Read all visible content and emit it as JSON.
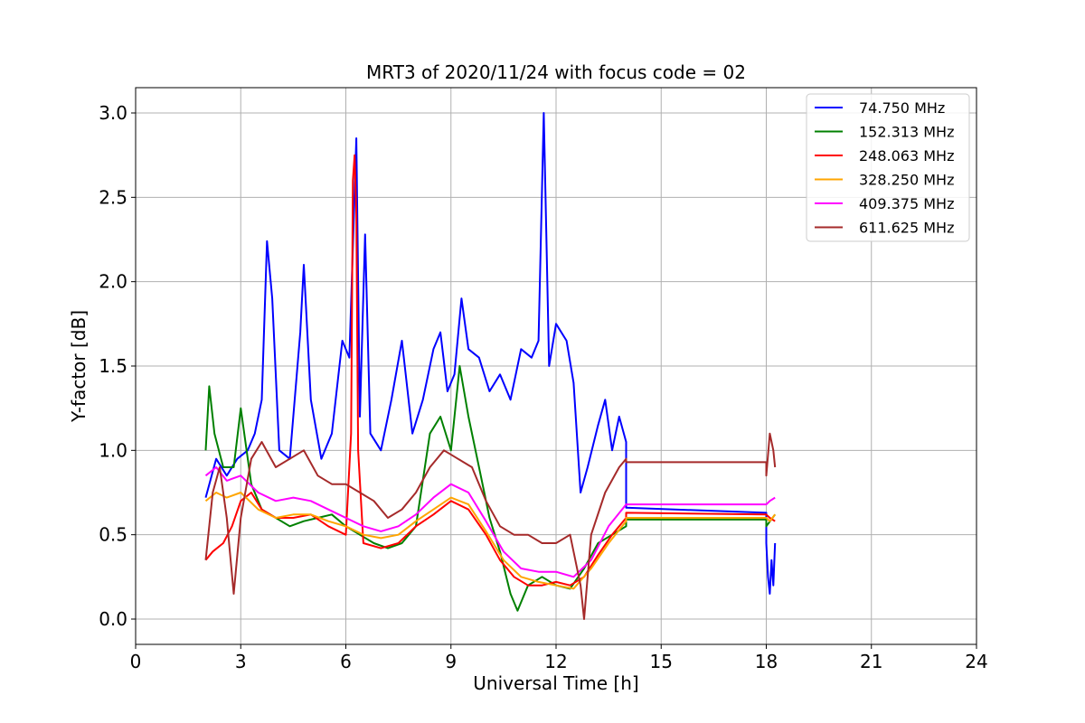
{
  "chart_data": {
    "type": "line",
    "title": "MRT3 of 2020/11/24 with focus code = 02",
    "xlabel": "Universal Time [h]",
    "ylabel": "Y-factor [dB]",
    "xlim": [
      0,
      24
    ],
    "ylim": [
      -0.15,
      3.15
    ],
    "xticks": [
      0,
      3,
      6,
      9,
      12,
      15,
      18,
      21,
      24
    ],
    "xtick_labels": [
      "0",
      "3",
      "6",
      "9",
      "12",
      "15",
      "18",
      "21",
      "24"
    ],
    "yticks": [
      0.0,
      0.5,
      1.0,
      1.5,
      2.0,
      2.5,
      3.0
    ],
    "ytick_labels": [
      "0.0",
      "0.5",
      "1.0",
      "1.5",
      "2.0",
      "2.5",
      "3.0"
    ],
    "grid": true,
    "legend_position": "top-right",
    "series": [
      {
        "name": " 74.750 MHz",
        "color": "#0000ff",
        "points": [
          [
            2.0,
            0.72
          ],
          [
            2.3,
            0.95
          ],
          [
            2.6,
            0.85
          ],
          [
            2.9,
            0.95
          ],
          [
            3.2,
            1.0
          ],
          [
            3.4,
            1.1
          ],
          [
            3.6,
            1.3
          ],
          [
            3.75,
            2.24
          ],
          [
            3.9,
            1.9
          ],
          [
            4.1,
            1.0
          ],
          [
            4.4,
            0.95
          ],
          [
            4.7,
            1.7
          ],
          [
            4.8,
            2.1
          ],
          [
            5.0,
            1.3
          ],
          [
            5.3,
            0.95
          ],
          [
            5.6,
            1.1
          ],
          [
            5.9,
            1.65
          ],
          [
            6.1,
            1.55
          ],
          [
            6.3,
            2.85
          ],
          [
            6.4,
            1.2
          ],
          [
            6.55,
            2.28
          ],
          [
            6.7,
            1.1
          ],
          [
            7.0,
            1.0
          ],
          [
            7.3,
            1.3
          ],
          [
            7.6,
            1.65
          ],
          [
            7.9,
            1.1
          ],
          [
            8.2,
            1.3
          ],
          [
            8.5,
            1.6
          ],
          [
            8.7,
            1.7
          ],
          [
            8.9,
            1.35
          ],
          [
            9.1,
            1.45
          ],
          [
            9.3,
            1.9
          ],
          [
            9.5,
            1.6
          ],
          [
            9.8,
            1.55
          ],
          [
            10.1,
            1.35
          ],
          [
            10.4,
            1.45
          ],
          [
            10.7,
            1.3
          ],
          [
            11.0,
            1.6
          ],
          [
            11.3,
            1.55
          ],
          [
            11.5,
            1.65
          ],
          [
            11.65,
            3.0
          ],
          [
            11.8,
            1.5
          ],
          [
            12.0,
            1.75
          ],
          [
            12.3,
            1.65
          ],
          [
            12.5,
            1.4
          ],
          [
            12.7,
            0.75
          ],
          [
            12.9,
            0.9
          ],
          [
            13.2,
            1.15
          ],
          [
            13.4,
            1.3
          ],
          [
            13.6,
            1.0
          ],
          [
            13.8,
            1.2
          ],
          [
            14.0,
            1.05
          ],
          [
            14.0,
            0.66
          ],
          [
            18.0,
            0.63
          ],
          [
            18.0,
            0.45
          ],
          [
            18.05,
            0.25
          ],
          [
            18.1,
            0.15
          ],
          [
            18.15,
            0.35
          ],
          [
            18.2,
            0.2
          ],
          [
            18.25,
            0.45
          ]
        ]
      },
      {
        "name": "152.313 MHz",
        "color": "#008000",
        "points": [
          [
            2.0,
            1.0
          ],
          [
            2.1,
            1.38
          ],
          [
            2.25,
            1.1
          ],
          [
            2.5,
            0.9
          ],
          [
            2.8,
            0.9
          ],
          [
            3.0,
            1.25
          ],
          [
            3.3,
            0.8
          ],
          [
            3.6,
            0.65
          ],
          [
            4.0,
            0.6
          ],
          [
            4.4,
            0.55
          ],
          [
            4.8,
            0.58
          ],
          [
            5.2,
            0.6
          ],
          [
            5.6,
            0.62
          ],
          [
            6.0,
            0.55
          ],
          [
            6.4,
            0.5
          ],
          [
            6.8,
            0.45
          ],
          [
            7.2,
            0.42
          ],
          [
            7.6,
            0.45
          ],
          [
            8.0,
            0.55
          ],
          [
            8.4,
            1.1
          ],
          [
            8.7,
            1.2
          ],
          [
            9.0,
            1.0
          ],
          [
            9.25,
            1.5
          ],
          [
            9.5,
            1.2
          ],
          [
            9.8,
            0.9
          ],
          [
            10.1,
            0.6
          ],
          [
            10.4,
            0.4
          ],
          [
            10.7,
            0.15
          ],
          [
            10.9,
            0.05
          ],
          [
            11.2,
            0.2
          ],
          [
            11.6,
            0.25
          ],
          [
            12.0,
            0.2
          ],
          [
            12.4,
            0.18
          ],
          [
            12.8,
            0.3
          ],
          [
            13.2,
            0.45
          ],
          [
            13.6,
            0.5
          ],
          [
            14.0,
            0.55
          ],
          [
            14.0,
            0.59
          ],
          [
            18.0,
            0.59
          ],
          [
            18.0,
            0.55
          ],
          [
            18.25,
            0.62
          ]
        ]
      },
      {
        "name": "248.063 MHz",
        "color": "#ff0000",
        "points": [
          [
            2.0,
            0.35
          ],
          [
            2.2,
            0.4
          ],
          [
            2.5,
            0.45
          ],
          [
            2.75,
            0.55
          ],
          [
            3.0,
            0.7
          ],
          [
            3.3,
            0.75
          ],
          [
            3.6,
            0.65
          ],
          [
            4.0,
            0.6
          ],
          [
            4.5,
            0.6
          ],
          [
            5.0,
            0.62
          ],
          [
            5.5,
            0.55
          ],
          [
            6.0,
            0.5
          ],
          [
            6.15,
            1.1
          ],
          [
            6.2,
            2.6
          ],
          [
            6.25,
            2.75
          ],
          [
            6.3,
            2.4
          ],
          [
            6.35,
            1.0
          ],
          [
            6.5,
            0.45
          ],
          [
            7.0,
            0.42
          ],
          [
            7.5,
            0.45
          ],
          [
            8.0,
            0.55
          ],
          [
            8.5,
            0.62
          ],
          [
            9.0,
            0.7
          ],
          [
            9.5,
            0.65
          ],
          [
            10.0,
            0.5
          ],
          [
            10.4,
            0.35
          ],
          [
            10.8,
            0.25
          ],
          [
            11.2,
            0.2
          ],
          [
            11.6,
            0.2
          ],
          [
            12.0,
            0.22
          ],
          [
            12.4,
            0.2
          ],
          [
            12.8,
            0.25
          ],
          [
            13.2,
            0.38
          ],
          [
            13.6,
            0.5
          ],
          [
            14.0,
            0.6
          ],
          [
            14.0,
            0.63
          ],
          [
            18.0,
            0.62
          ],
          [
            18.1,
            0.6
          ],
          [
            18.25,
            0.58
          ]
        ]
      },
      {
        "name": "328.250 MHz",
        "color": "#ffa500",
        "points": [
          [
            2.0,
            0.7
          ],
          [
            2.3,
            0.75
          ],
          [
            2.6,
            0.72
          ],
          [
            3.0,
            0.75
          ],
          [
            3.5,
            0.65
          ],
          [
            4.0,
            0.6
          ],
          [
            4.5,
            0.62
          ],
          [
            5.0,
            0.62
          ],
          [
            5.5,
            0.58
          ],
          [
            6.0,
            0.55
          ],
          [
            6.5,
            0.5
          ],
          [
            7.0,
            0.48
          ],
          [
            7.5,
            0.5
          ],
          [
            8.0,
            0.58
          ],
          [
            8.5,
            0.65
          ],
          [
            9.0,
            0.72
          ],
          [
            9.5,
            0.68
          ],
          [
            10.0,
            0.52
          ],
          [
            10.5,
            0.35
          ],
          [
            11.0,
            0.25
          ],
          [
            11.5,
            0.22
          ],
          [
            12.0,
            0.2
          ],
          [
            12.5,
            0.18
          ],
          [
            13.0,
            0.3
          ],
          [
            13.5,
            0.45
          ],
          [
            14.0,
            0.58
          ],
          [
            14.0,
            0.6
          ],
          [
            18.0,
            0.6
          ],
          [
            18.1,
            0.58
          ],
          [
            18.25,
            0.62
          ]
        ]
      },
      {
        "name": "409.375 MHz",
        "color": "#ff00ff",
        "points": [
          [
            2.0,
            0.85
          ],
          [
            2.3,
            0.9
          ],
          [
            2.6,
            0.82
          ],
          [
            3.0,
            0.85
          ],
          [
            3.5,
            0.75
          ],
          [
            4.0,
            0.7
          ],
          [
            4.5,
            0.72
          ],
          [
            5.0,
            0.7
          ],
          [
            5.5,
            0.65
          ],
          [
            6.0,
            0.6
          ],
          [
            6.5,
            0.55
          ],
          [
            7.0,
            0.52
          ],
          [
            7.5,
            0.55
          ],
          [
            8.0,
            0.62
          ],
          [
            8.5,
            0.72
          ],
          [
            9.0,
            0.8
          ],
          [
            9.5,
            0.75
          ],
          [
            10.0,
            0.58
          ],
          [
            10.5,
            0.4
          ],
          [
            11.0,
            0.3
          ],
          [
            11.5,
            0.28
          ],
          [
            12.0,
            0.28
          ],
          [
            12.5,
            0.25
          ],
          [
            13.0,
            0.35
          ],
          [
            13.5,
            0.55
          ],
          [
            14.0,
            0.68
          ],
          [
            14.0,
            0.68
          ],
          [
            18.0,
            0.68
          ],
          [
            18.1,
            0.7
          ],
          [
            18.25,
            0.72
          ]
        ]
      },
      {
        "name": "611.625 MHz",
        "color": "#a52a2a",
        "points": [
          [
            2.0,
            0.35
          ],
          [
            2.2,
            0.75
          ],
          [
            2.4,
            0.9
          ],
          [
            2.6,
            0.6
          ],
          [
            2.8,
            0.15
          ],
          [
            3.0,
            0.6
          ],
          [
            3.3,
            0.95
          ],
          [
            3.6,
            1.05
          ],
          [
            4.0,
            0.9
          ],
          [
            4.4,
            0.95
          ],
          [
            4.8,
            1.0
          ],
          [
            5.2,
            0.85
          ],
          [
            5.6,
            0.8
          ],
          [
            6.0,
            0.8
          ],
          [
            6.4,
            0.75
          ],
          [
            6.8,
            0.7
          ],
          [
            7.2,
            0.6
          ],
          [
            7.6,
            0.65
          ],
          [
            8.0,
            0.75
          ],
          [
            8.4,
            0.9
          ],
          [
            8.8,
            1.0
          ],
          [
            9.2,
            0.95
          ],
          [
            9.6,
            0.9
          ],
          [
            10.0,
            0.7
          ],
          [
            10.4,
            0.55
          ],
          [
            10.8,
            0.5
          ],
          [
            11.2,
            0.5
          ],
          [
            11.6,
            0.45
          ],
          [
            12.0,
            0.45
          ],
          [
            12.4,
            0.5
          ],
          [
            12.7,
            0.2
          ],
          [
            12.8,
            0.0
          ],
          [
            13.0,
            0.5
          ],
          [
            13.4,
            0.75
          ],
          [
            13.8,
            0.9
          ],
          [
            14.0,
            0.95
          ],
          [
            14.0,
            0.93
          ],
          [
            18.0,
            0.93
          ],
          [
            18.0,
            0.85
          ],
          [
            18.1,
            1.1
          ],
          [
            18.2,
            1.0
          ],
          [
            18.25,
            0.9
          ]
        ]
      }
    ]
  }
}
